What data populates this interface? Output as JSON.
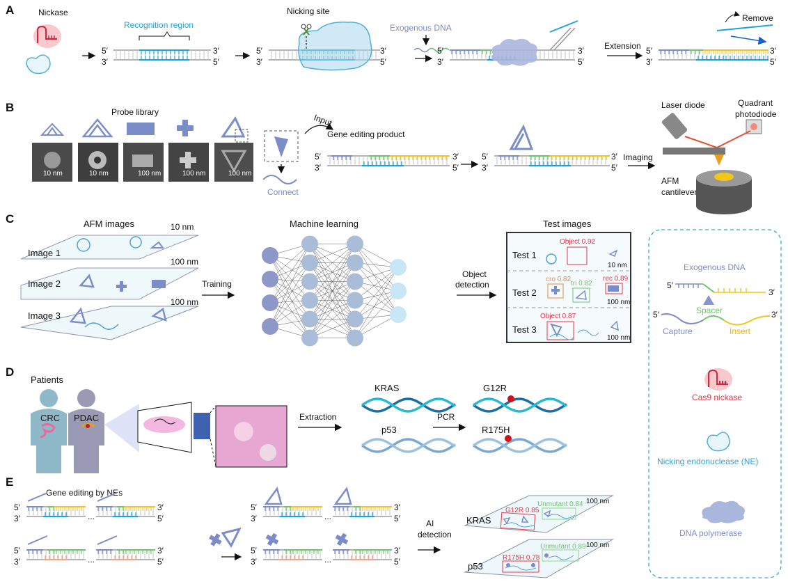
{
  "labels": {
    "five": "5′",
    "three": "3′"
  },
  "panel_a": {
    "letter": "A",
    "nickase": "Nickase",
    "recognition_region": "Recognition region",
    "nicking_site": "Nicking site",
    "exogenous_dna": "Exogenous DNA",
    "extension": "Extension",
    "remove": "Remove"
  },
  "panel_b": {
    "letter": "B",
    "probe_library": "Probe library",
    "scale_bars": [
      "10 nm",
      "10 nm",
      "100 nm",
      "100 nm",
      "100 nm"
    ],
    "input": "Input",
    "gene_editing_product": "Gene editing product",
    "connect": "Connect",
    "imaging": "Imaging",
    "laser_diode": "Laser diode",
    "quadrant_photodiode": [
      "Quadrant",
      "photodiode"
    ],
    "afm_cantilever": [
      "AFM",
      "cantilever"
    ]
  },
  "panel_c": {
    "letter": "C",
    "afm_images": "AFM images",
    "images": [
      "Image 1",
      "Image 2",
      "Image 3"
    ],
    "image_scales": [
      "10 nm",
      "100 nm",
      "100 nm"
    ],
    "training": "Training",
    "machine_learning": "Machine learning",
    "object_detection": [
      "Object",
      "detection"
    ],
    "test_images": "Test images",
    "tests": [
      {
        "label": "Test 1",
        "detections": [
          "Object 0.92"
        ],
        "scale": "10 nm"
      },
      {
        "label": "Test 2",
        "detections": [
          "cro 0.82",
          "tri 0.82",
          "rec 0.89"
        ],
        "scale": "100 nm"
      },
      {
        "label": "Test 3",
        "detections": [
          "Object 0.87"
        ],
        "scale": "100 nm"
      }
    ]
  },
  "legend": {
    "exogenous_dna": "Exogenous DNA",
    "spacer": "Spacer",
    "capture": "Capture",
    "insert": "Insert",
    "cas9_nickase": "Cas9 nickase",
    "nicking_endonuclease": "Nicking endonuclease (NE)",
    "dna_polymerase": "DNA polymerase"
  },
  "panel_d": {
    "letter": "D",
    "patients": "Patients",
    "crc": "CRC",
    "pdac": "PDAC",
    "extraction": "Extraction",
    "kras": "KRAS",
    "p53": "p53",
    "pcr": "PCR",
    "g12r": "G12R",
    "r175h": "R175H"
  },
  "panel_e": {
    "letter": "E",
    "gene_editing_by_nes": "Gene editing by NEs",
    "ai_detection": [
      "AI",
      "detection"
    ],
    "kras": "KRAS",
    "p53": "p53",
    "kras_detections": [
      "G12R 0.85",
      "Unmutant 0.84"
    ],
    "p53_detections": [
      "R175H 0.78",
      "Unmutant 0.89"
    ],
    "scale": "100 nm",
    "ellipsis": "..."
  },
  "colors": {
    "cyan": "#1aa3e0",
    "purple": "#7b8dc8",
    "green": "#6cc66c",
    "yellow": "#f2c51b",
    "red": "#e8334a",
    "orange": "#f08a3c",
    "dashed_border": "#3aa6d8"
  }
}
